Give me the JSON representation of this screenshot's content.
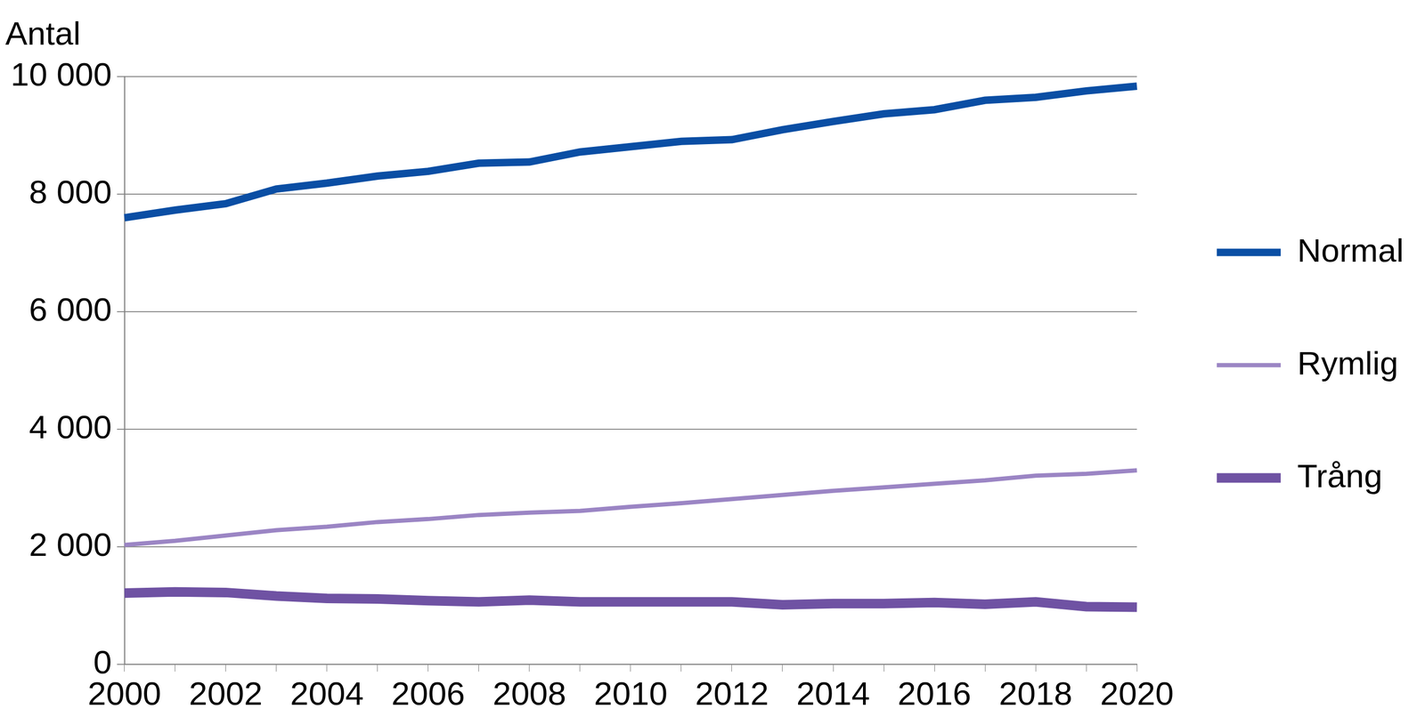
{
  "chart_data": {
    "type": "line",
    "ylabel": "Antal",
    "categories": [
      "2000",
      null,
      "2002",
      null,
      "2004",
      null,
      "2006",
      null,
      "2008",
      null,
      "2010",
      null,
      "2012",
      null,
      "2014",
      null,
      "2016",
      null,
      "2018",
      null,
      "2020"
    ],
    "series": [
      {
        "name": "Normal",
        "color": "#0a4ea4",
        "values": [
          7600,
          7730,
          7840,
          8090,
          8190,
          8310,
          8390,
          8530,
          8550,
          8720,
          8810,
          8900,
          8930,
          9100,
          9240,
          9370,
          9440,
          9600,
          9650,
          9760,
          9840
        ]
      },
      {
        "name": "Rymlig",
        "color": "#9b85c4",
        "values": [
          2030,
          2100,
          2190,
          2280,
          2340,
          2420,
          2470,
          2540,
          2580,
          2610,
          2680,
          2740,
          2810,
          2880,
          2950,
          3010,
          3070,
          3130,
          3210,
          3240,
          3300
        ]
      },
      {
        "name": "Trång",
        "color": "#6f52a3",
        "values": [
          1210,
          1230,
          1220,
          1160,
          1120,
          1110,
          1080,
          1060,
          1090,
          1060,
          1060,
          1060,
          1060,
          1010,
          1030,
          1030,
          1050,
          1020,
          1060,
          980,
          970
        ]
      }
    ],
    "ylim": [
      0,
      10000
    ],
    "yticks": [
      0,
      {
        "value": 2000,
        "label": "2 000"
      },
      {
        "value": 4000,
        "label": "4 000"
      },
      {
        "value": 6000,
        "label": "6 000"
      },
      {
        "value": 8000,
        "label": "8 000"
      },
      {
        "value": 10000,
        "label": "10 000"
      }
    ],
    "grid": true,
    "legend": "right"
  }
}
